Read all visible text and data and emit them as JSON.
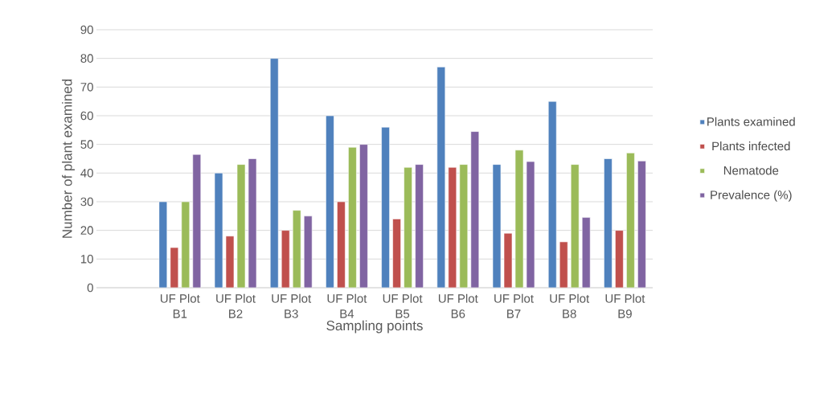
{
  "chart_data": {
    "type": "bar",
    "xlabel": "Sampling points",
    "ylabel": "Number of plant examined",
    "categories": [
      null,
      "UF Plot B1",
      "UF Plot B2",
      "UF Plot B3",
      "UF Plot B4",
      "UF Plot B5",
      "UF Plot B6",
      "UF Plot B7",
      "UF Plot B8",
      "UF Plot B9"
    ],
    "series": [
      {
        "name": "Plants examined",
        "color": "#4f81bd",
        "values": [
          null,
          30,
          40,
          80,
          60,
          56,
          77,
          43,
          65,
          45
        ]
      },
      {
        "name": "Plants infected",
        "color": "#c0504d",
        "values": [
          null,
          14,
          18,
          20,
          30,
          24,
          42,
          19,
          16,
          20
        ]
      },
      {
        "name": "Nematode",
        "color": "#9bbb59",
        "values": [
          null,
          30,
          43,
          27,
          49,
          42,
          43,
          48,
          43,
          47
        ]
      },
      {
        "name": "Prevalence (%)",
        "color": "#8064a2",
        "values": [
          null,
          46.5,
          45,
          25,
          50,
          43,
          54.5,
          44,
          24.5,
          44.2
        ]
      }
    ],
    "ylim": [
      0,
      90
    ],
    "yticks": [
      0,
      10,
      20,
      30,
      40,
      50,
      60,
      70,
      80,
      90
    ],
    "grid": "y",
    "legend": "right"
  }
}
